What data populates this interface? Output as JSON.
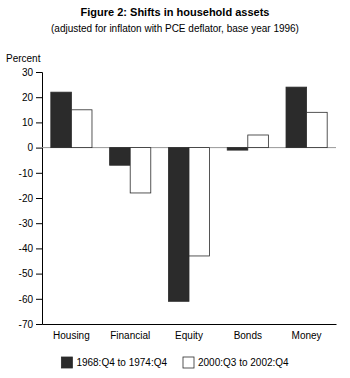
{
  "chart_data": {
    "type": "bar",
    "title": "Figure 2: Shifts in household assets",
    "subtitle": "(adjusted for inflaton with PCE deflator, base year 1996)",
    "ylabel": "Percent",
    "categories": [
      "Housing",
      "Financial",
      "Equity",
      "Bonds",
      "Money"
    ],
    "series": [
      {
        "name": "1968:Q4 to 1974:Q4",
        "color": "#2b2b2b",
        "values": [
          22,
          -7,
          -61,
          -1,
          24
        ]
      },
      {
        "name": "2000:Q3 to 2002:Q4",
        "color": "#ffffff",
        "values": [
          15,
          -18,
          -43,
          5,
          14
        ]
      }
    ],
    "ylim": [
      -70,
      30
    ],
    "yticks": [
      -70,
      -60,
      -50,
      -40,
      -30,
      -20,
      -10,
      0,
      10,
      20,
      30
    ],
    "grid": false,
    "legend": "bottom"
  }
}
